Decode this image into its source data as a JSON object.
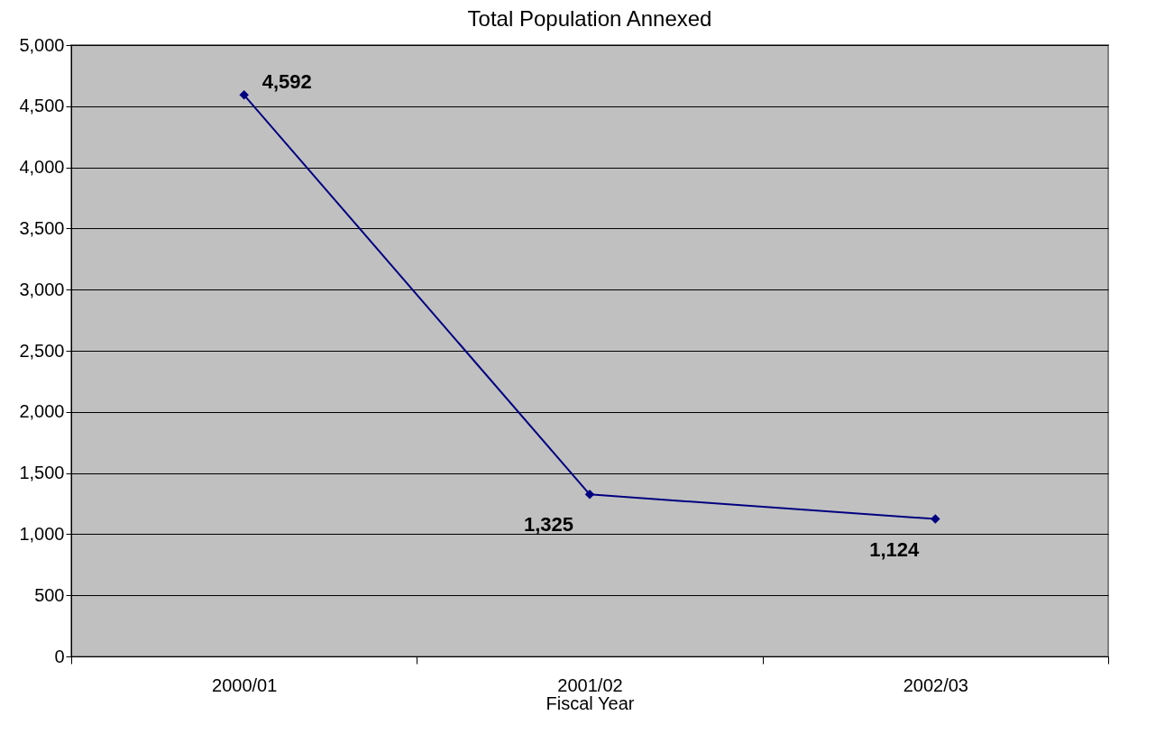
{
  "chart_data": {
    "type": "line",
    "title": "Total Population Annexed",
    "xlabel": "Fiscal Year",
    "categories": [
      "2000/01",
      "2001/02",
      "2002/03"
    ],
    "series": [
      {
        "color": "#000080",
        "values": [
          4592,
          1325,
          1124
        ]
      }
    ],
    "value_labels": [
      "4,592",
      "1,325",
      "1,124"
    ],
    "ylim": [
      0,
      5000
    ],
    "yticks": [
      {
        "value": 0,
        "label": "0"
      },
      {
        "value": 500,
        "label": "500"
      },
      {
        "value": 1000,
        "label": "1,000"
      },
      {
        "value": 1500,
        "label": "1,500"
      },
      {
        "value": 2000,
        "label": "2,000"
      },
      {
        "value": 2500,
        "label": "2,500"
      },
      {
        "value": 3000,
        "label": "3,000"
      },
      {
        "value": 3500,
        "label": "3,500"
      },
      {
        "value": 4000,
        "label": "4,000"
      },
      {
        "value": 4500,
        "label": "4,500"
      },
      {
        "value": 5000,
        "label": "5,000"
      }
    ],
    "grid": "y",
    "marker": "diamond",
    "line_style": "solid"
  }
}
